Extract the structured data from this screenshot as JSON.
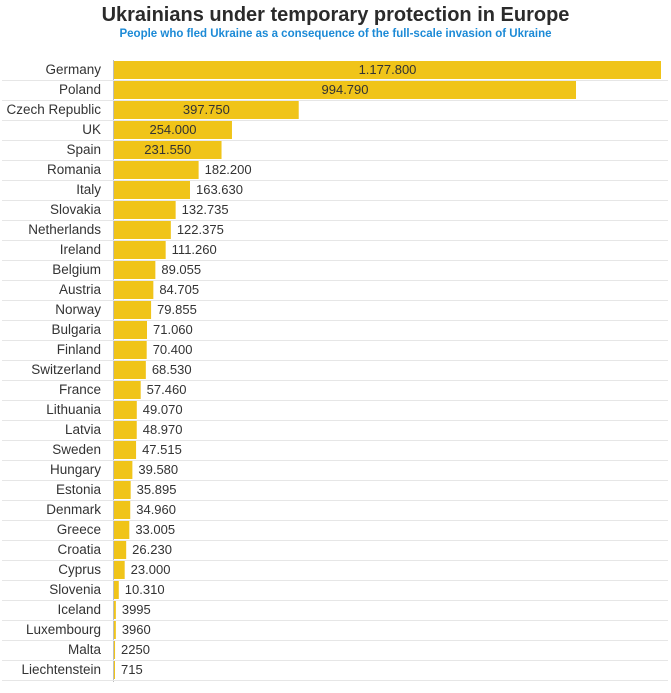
{
  "chart_data": {
    "type": "bar",
    "orientation": "horizontal",
    "title": "Ukrainians under temporary protection in Europe",
    "subtitle": "People who fled Ukraine as a consequence of the full-scale invasion of Ukraine",
    "categories": [
      "Germany",
      "Poland",
      "Czech Republic",
      "UK",
      "Spain",
      "Romania",
      "Italy",
      "Slovakia",
      "Netherlands",
      "Ireland",
      "Belgium",
      "Austria",
      "Norway",
      "Bulgaria",
      "Finland",
      "Switzerland",
      "France",
      "Lithuania",
      "Latvia",
      "Sweden",
      "Hungary",
      "Estonia",
      "Denmark",
      "Greece",
      "Croatia",
      "Cyprus",
      "Slovenia",
      "Iceland",
      "Luxembourg",
      "Malta",
      "Liechtenstein"
    ],
    "values": [
      1177800,
      994790,
      397750,
      254000,
      231550,
      182200,
      163630,
      132735,
      122375,
      111260,
      89055,
      84705,
      79855,
      71060,
      70400,
      68530,
      57460,
      49070,
      48970,
      47515,
      39580,
      35895,
      34960,
      33005,
      26230,
      23000,
      10310,
      3995,
      3960,
      2250,
      715
    ],
    "value_labels": [
      "1.177.800",
      "994.790",
      "397.750",
      "254.000",
      "231.550",
      "182.200",
      "163.630",
      "132.735",
      "122.375",
      "111.260",
      "89.055",
      "84.705",
      "79.855",
      "71.060",
      "70.400",
      "68.530",
      "57.460",
      "49.070",
      "48.970",
      "47.515",
      "39.580",
      "35.895",
      "34.960",
      "33.005",
      "26.230",
      "23.000",
      "10.310",
      "3995",
      "3960",
      "2250",
      "715"
    ],
    "bar_color": "#f0c419",
    "xlim": [
      0,
      1177800
    ],
    "xlabel": "",
    "ylabel": "",
    "grid": true
  }
}
